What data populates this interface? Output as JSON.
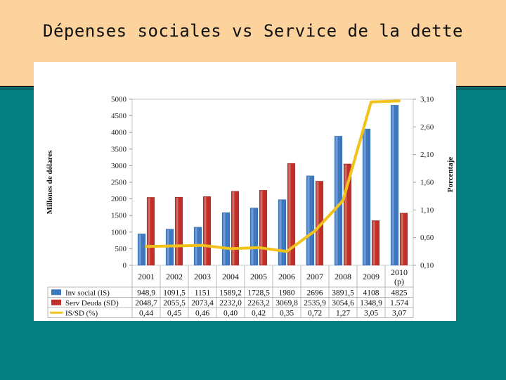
{
  "slide": {
    "title": "Dépenses sociales vs Service de la dette"
  },
  "chart_data": {
    "type": "bar+line",
    "categories": [
      "2001",
      "2002",
      "2003",
      "2004",
      "2005",
      "2006",
      "2007",
      "2008",
      "2009",
      "2010\n(p)"
    ],
    "ylabel": "Millones de dólares",
    "y2label": "Porcentaje",
    "ylim": [
      0,
      5000
    ],
    "yticks": [
      "0",
      "500",
      "1000",
      "1500",
      "2000",
      "2500",
      "3000",
      "3500",
      "4000",
      "4500",
      "5000"
    ],
    "y2lim": [
      0.1,
      3.1
    ],
    "y2ticks": [
      "0,10",
      "0,60",
      "1,10",
      "1,60",
      "2,10",
      "2,60",
      "3,10"
    ],
    "series": [
      {
        "name": "Inv social (IS)",
        "kind": "bar",
        "color": "#3E79C0",
        "values": [
          948.9,
          1091.5,
          1151,
          1589.2,
          1728.5,
          1980,
          2696,
          3891.5,
          4108,
          4825
        ],
        "labels": [
          "948,9",
          "1091,5",
          "1151",
          "1589,2",
          "1728,5",
          "1980",
          "2696",
          "3891,5",
          "4108",
          "4825"
        ]
      },
      {
        "name": "Serv Deuda (SD)",
        "kind": "bar",
        "color": "#C0302A",
        "values": [
          2048.7,
          2055.5,
          2073.4,
          2232.0,
          2263.2,
          3069.8,
          2535.9,
          3054.6,
          1348.9,
          1574
        ],
        "labels": [
          "2048,7",
          "2055,5",
          "2073,4",
          "2232,0",
          "2263,2",
          "3069,8",
          "2535,9",
          "3054,6",
          "1348,9",
          "1.574"
        ]
      },
      {
        "name": "IS/SD (%)",
        "kind": "line",
        "axis": "right",
        "color": "#F2C21B",
        "values": [
          0.44,
          0.45,
          0.46,
          0.4,
          0.42,
          0.35,
          0.72,
          1.27,
          3.05,
          3.07
        ],
        "labels": [
          "0,44",
          "0,45",
          "0,46",
          "0,40",
          "0,42",
          "0,35",
          "0,72",
          "1,27",
          "3,05",
          "3,07"
        ]
      }
    ]
  }
}
